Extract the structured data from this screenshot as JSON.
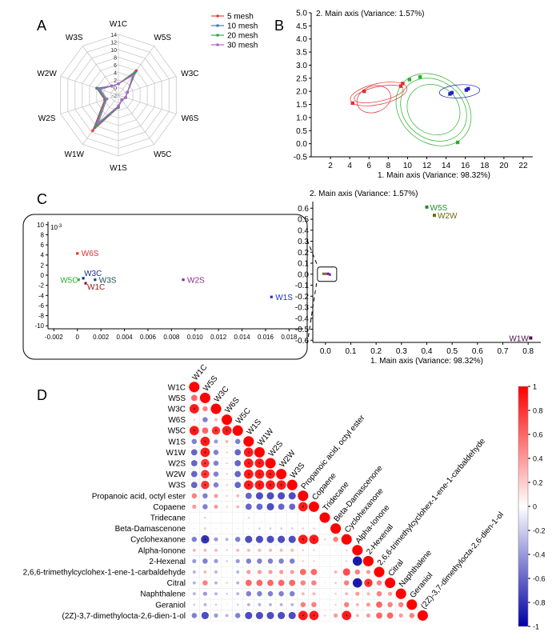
{
  "panel_labels": {
    "a": "A",
    "b": "B",
    "c": "C",
    "d": "D"
  },
  "chart_data": [
    {
      "panel": "A",
      "type": "radar",
      "categories": [
        "W1C",
        "W5S",
        "W3C",
        "W6S",
        "W5C",
        "W1S",
        "W1W",
        "W2S",
        "W2W",
        "W3S"
      ],
      "r_ticks": [
        "-2",
        "0",
        "2",
        "4",
        "6",
        "8",
        "10",
        "12",
        "14"
      ],
      "rlim": [
        -2,
        14
      ],
      "legend_position": "top-right",
      "series": [
        {
          "name": "5 mesh",
          "color": "#e8413c",
          "values": [
            1.0,
            6.0,
            0.5,
            0.0,
            -0.5,
            1.2,
            9.5,
            1.8,
            4.0,
            1.0
          ]
        },
        {
          "name": "10 mesh",
          "color": "#3b78d8",
          "values": [
            1.0,
            5.5,
            0.5,
            0.0,
            -0.5,
            1.1,
            8.5,
            1.6,
            3.8,
            1.0
          ]
        },
        {
          "name": "20 mesh",
          "color": "#2fa84f",
          "values": [
            1.0,
            5.2,
            0.5,
            0.0,
            -0.5,
            1.0,
            8.0,
            1.5,
            3.5,
            1.0
          ]
        },
        {
          "name": "30 mesh",
          "color": "#a668c9",
          "values": [
            1.0,
            4.5,
            0.5,
            0.0,
            -0.5,
            0.8,
            7.0,
            1.2,
            3.0,
            1.0
          ]
        }
      ]
    },
    {
      "panel": "B",
      "type": "scatter",
      "title": "2. Main axis (Variance: 1.57%)",
      "xlabel": "1. Main axis (Variance: 98.32%)",
      "xlim": [
        0,
        23
      ],
      "ylim": [
        -0.5,
        5.0
      ],
      "x_ticks": [
        "2",
        "4",
        "6",
        "8",
        "10",
        "12",
        "14",
        "16",
        "18",
        "20",
        "22"
      ],
      "y_ticks": [
        "-0.5",
        "0.0",
        "0.5",
        "1.0",
        "1.5",
        "2.0",
        "2.5",
        "3.0",
        "3.5",
        "4.0",
        "4.5",
        "5.0"
      ],
      "groups": [
        {
          "color": "#e03030",
          "points": [
            [
              4.3,
              1.55
            ],
            [
              5.5,
              2.0
            ],
            [
              9.3,
              2.2
            ],
            [
              9.5,
              2.3
            ]
          ]
        },
        {
          "color": "#2ab02a",
          "points": [
            [
              10.2,
              2.45
            ],
            [
              11.3,
              2.55
            ],
            [
              15.2,
              0.05
            ]
          ]
        },
        {
          "color": "#2020c0",
          "points": [
            [
              14.4,
              1.9
            ],
            [
              14.6,
              1.95
            ],
            [
              16.1,
              2.05
            ],
            [
              16.3,
              2.1
            ]
          ]
        }
      ]
    },
    {
      "panel": "C-inset",
      "type": "scatter",
      "multiplier": "10-3",
      "x_ticks": [
        "-0.002",
        "0",
        "0.002",
        "0.004",
        "0.006",
        "0.008",
        "0.010",
        "0.012",
        "0.014",
        "0.016",
        "0.018"
      ],
      "y_ticks": [
        "10",
        "8",
        "6",
        "4",
        "2",
        "0",
        "-2",
        "-4",
        "-6",
        "-8",
        "-10"
      ],
      "xlim": [
        -0.0025,
        0.0192
      ],
      "ylim": [
        -10.6,
        10.6
      ],
      "points": [
        {
          "label": "W6S",
          "x": 0.0,
          "y": 4.3,
          "color": "#e03030"
        },
        {
          "label": "W3C",
          "x": 0.0005,
          "y": -0.6,
          "color": "#1b2f8f"
        },
        {
          "label": "W5C",
          "x": 0.0001,
          "y": -0.9,
          "color": "#2ab02a"
        },
        {
          "label": "W3S",
          "x": 0.0015,
          "y": -0.9,
          "color": "#1d4d5c"
        },
        {
          "label": "W1C",
          "x": 0.0007,
          "y": -1.6,
          "color": "#8b1a1a"
        },
        {
          "label": "W2S",
          "x": 0.009,
          "y": -0.9,
          "color": "#8e2a93"
        },
        {
          "label": "W1S",
          "x": 0.0165,
          "y": -4.3,
          "color": "#2030c8"
        }
      ]
    },
    {
      "panel": "C",
      "type": "scatter",
      "title": "2. Main axis (Variance: 1.57%)",
      "xlabel": "1. Main axis (Variance: 98.32%)",
      "xlim": [
        -0.05,
        0.85
      ],
      "ylim": [
        -0.62,
        0.66
      ],
      "x_ticks": [
        "0.0",
        "0.1",
        "0.2",
        "0.3",
        "0.4",
        "0.5",
        "0.6",
        "0.7",
        "0.8"
      ],
      "y_ticks": [
        "0.6",
        "0.5",
        "0.4",
        "0.3",
        "0.2",
        "0.1",
        "0.0",
        "-0.1",
        "-0.2",
        "-0.3",
        "-0.4",
        "-0.5",
        "-0.6"
      ],
      "points": [
        {
          "label": "W5S",
          "x": 0.4,
          "y": 0.61,
          "color": "#2a8a2a"
        },
        {
          "label": "W2W",
          "x": 0.43,
          "y": 0.535,
          "color": "#6b6b10"
        },
        {
          "label": "W1W",
          "x": 0.81,
          "y": -0.58,
          "color": "#4a1050"
        }
      ]
    },
    {
      "panel": "D",
      "type": "heatmap",
      "labels": [
        "W1C",
        "W5S",
        "W3C",
        "W6S",
        "W5C",
        "W1S",
        "W1W",
        "W2S",
        "W2W",
        "W3S",
        "Propanoic acid, octyl ester",
        "Copaene",
        "Tridecane",
        "Beta-Damascenone",
        "Cyclohexanone",
        "Alpha-Ionone",
        "2-Hexenal",
        "2,6,6-trimethylcyclohex-1-ene-1-carbaldehyde",
        "Citral",
        "Naphthalene",
        "Geraniol",
        "(2Z)-3,7-dimethylocta-2,6-dien-1-ol"
      ],
      "colorbar_ticks": [
        "1",
        "0.8",
        "0.6",
        "0.4",
        "0.2",
        "0",
        "-0.2",
        "-0.4",
        "-0.6",
        "-0.8",
        "-1"
      ],
      "clim": [
        -1,
        1
      ],
      "lower_triangle_rows": [
        [
          1
        ],
        [
          0.6,
          1
        ],
        [
          0.9,
          0.5,
          1
        ],
        [
          0.2,
          -0.5,
          0.3,
          1
        ],
        [
          0.9,
          0.6,
          0.8,
          0.9,
          1
        ],
        [
          -0.5,
          0.9,
          -0.4,
          0.3,
          -0.5,
          1
        ],
        [
          -0.6,
          0.9,
          -0.5,
          0.2,
          -0.6,
          0.9,
          1
        ],
        [
          -0.6,
          0.8,
          -0.5,
          0.2,
          -0.6,
          0.9,
          0.9,
          1
        ],
        [
          -0.6,
          0.8,
          -0.5,
          0.2,
          -0.6,
          0.9,
          0.9,
          0.9,
          1
        ],
        [
          -0.6,
          0.8,
          -0.5,
          0.2,
          -0.6,
          0.9,
          0.9,
          0.9,
          0.9,
          1
        ],
        [
          0.5,
          -0.5,
          0.4,
          0.2,
          0.3,
          -0.6,
          -0.7,
          -0.7,
          -0.7,
          -0.7,
          1
        ],
        [
          0.4,
          -0.5,
          0.4,
          0.2,
          0.3,
          -0.6,
          -0.6,
          -0.7,
          -0.6,
          -0.6,
          0.9,
          1
        ],
        [
          0.1,
          0.2,
          0.1,
          0.1,
          0.1,
          0.2,
          0.1,
          0.1,
          0.1,
          0.1,
          0.1,
          0.1,
          1
        ],
        [
          -0.1,
          -0.2,
          -0.1,
          -0.1,
          -0.1,
          -0.1,
          -0.2,
          -0.2,
          -0.2,
          -0.2,
          0.2,
          0.2,
          0.1,
          1
        ],
        [
          -0.5,
          -0.8,
          -0.4,
          -0.3,
          -0.5,
          -0.7,
          -0.7,
          -0.7,
          -0.7,
          -0.7,
          0.9,
          0.9,
          0.2,
          0.5,
          1
        ],
        [
          0.3,
          0.3,
          0.3,
          0.2,
          0.3,
          0.3,
          0.3,
          0.3,
          0.3,
          0.3,
          0.2,
          0.2,
          0.1,
          -0.1,
          0.2,
          1
        ],
        [
          -0.4,
          -0.5,
          -0.4,
          -0.2,
          -0.4,
          -0.5,
          -0.5,
          -0.5,
          -0.5,
          -0.5,
          0.2,
          0.2,
          0.1,
          0.1,
          0.2,
          -0.9,
          1
        ],
        [
          -0.3,
          0.3,
          -0.3,
          0.1,
          -0.3,
          0.4,
          0.4,
          0.4,
          0.4,
          0.4,
          0.6,
          0.6,
          0.1,
          0.3,
          0.7,
          0.5,
          0.4,
          1
        ],
        [
          -0.3,
          0.5,
          -0.3,
          0.2,
          -0.3,
          0.6,
          0.6,
          0.6,
          0.6,
          0.6,
          0.5,
          0.5,
          0.1,
          -0.2,
          0.5,
          -0.9,
          0.8,
          0.5,
          1
        ],
        [
          -0.3,
          -0.4,
          -0.3,
          -0.2,
          -0.3,
          -0.5,
          -0.5,
          -0.5,
          -0.5,
          -0.5,
          0.3,
          0.3,
          0.1,
          0.2,
          0.3,
          0.4,
          0.3,
          0.5,
          0.4,
          1
        ],
        [
          -0.2,
          -0.3,
          -0.2,
          -0.1,
          -0.2,
          -0.3,
          -0.3,
          -0.3,
          -0.3,
          -0.3,
          0.5,
          0.5,
          0.1,
          0.2,
          0.5,
          0.3,
          0.4,
          0.6,
          0.5,
          0.5,
          1
        ],
        [
          -0.5,
          -0.7,
          -0.4,
          -0.3,
          -0.5,
          -0.7,
          -0.7,
          -0.7,
          -0.7,
          -0.7,
          0.9,
          0.9,
          0.2,
          0.4,
          0.9,
          0.3,
          0.4,
          0.6,
          0.6,
          0.4,
          0.5,
          1
        ]
      ]
    }
  ]
}
